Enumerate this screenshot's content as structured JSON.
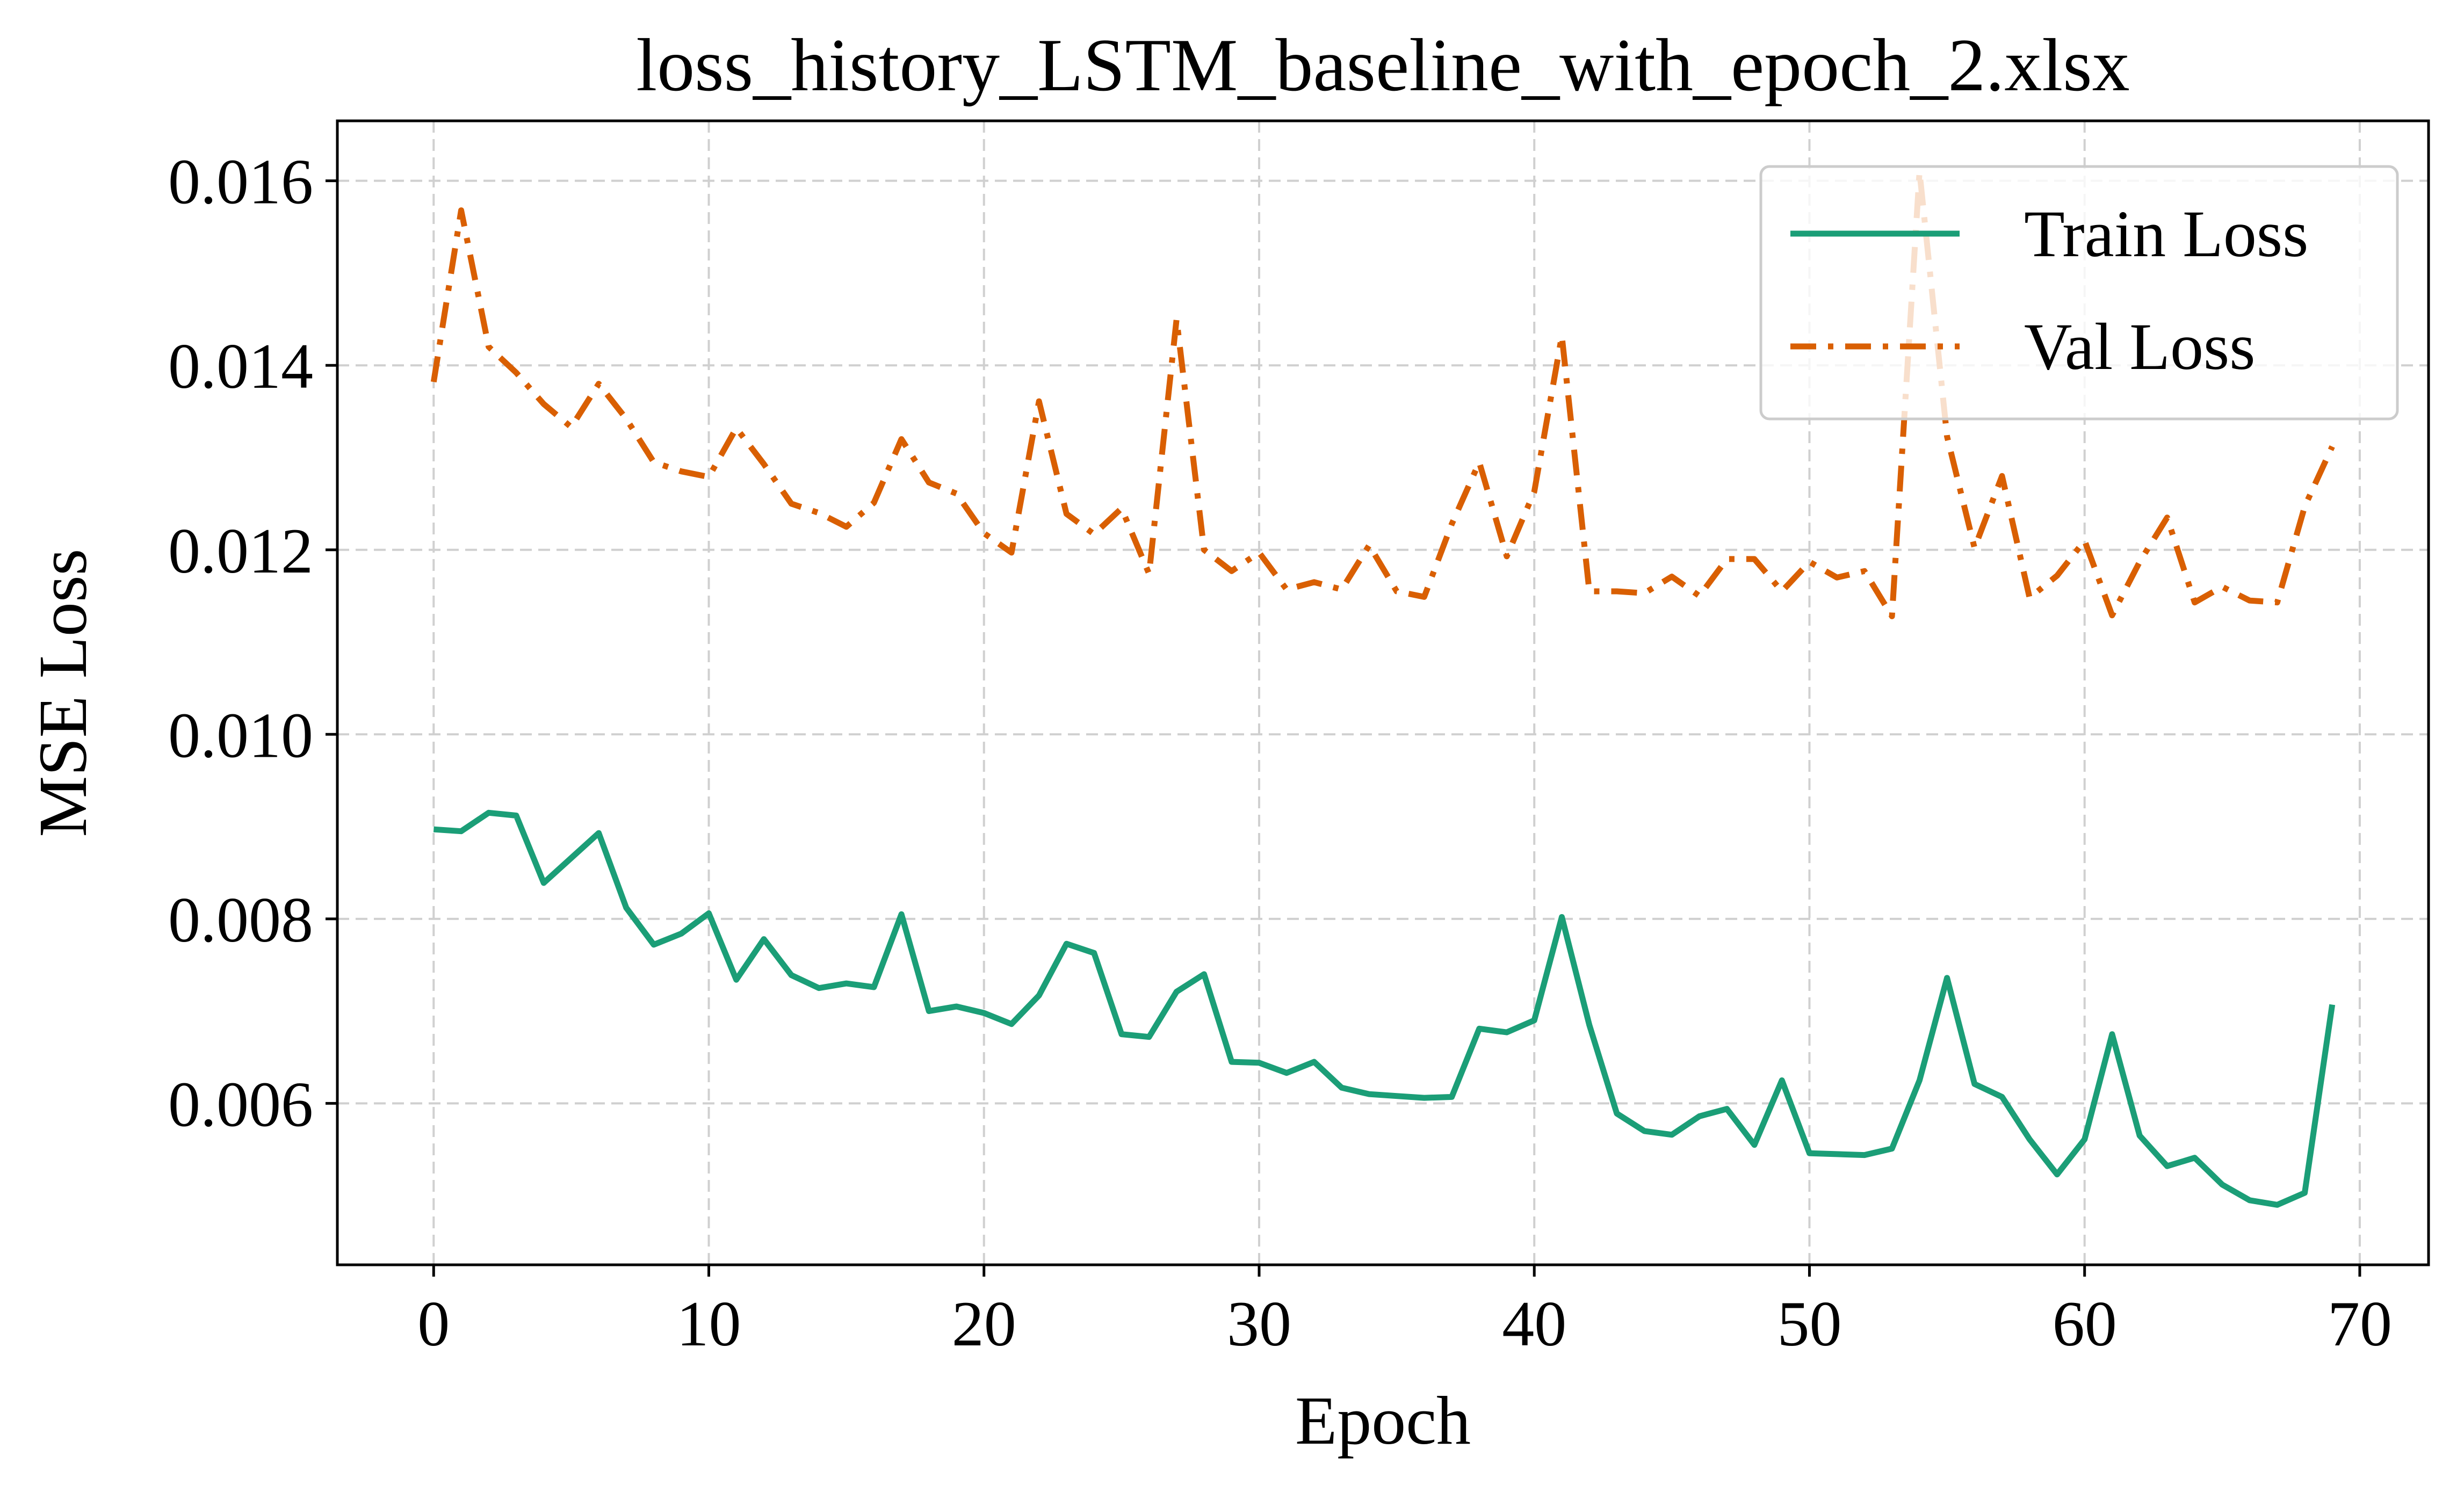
{
  "chart_data": {
    "type": "line",
    "title": "loss_history_LSTM_baseline_with_epoch_2.xlsx",
    "xlabel": "Epoch",
    "ylabel": "MSE Loss",
    "xlim": [
      -3.5,
      72.5
    ],
    "ylim": [
      0.00425,
      0.01665
    ],
    "x_ticks": [
      0,
      10,
      20,
      30,
      40,
      50,
      60,
      70
    ],
    "x_tick_labels": [
      "0",
      "10",
      "20",
      "30",
      "40",
      "50",
      "60",
      "70"
    ],
    "y_ticks": [
      0.006,
      0.008,
      0.01,
      0.012,
      0.014,
      0.016
    ],
    "y_tick_labels": [
      "0.006",
      "0.008",
      "0.010",
      "0.012",
      "0.014",
      "0.016"
    ],
    "grid": true,
    "legend_position": "top-right",
    "x": [
      0,
      1,
      2,
      3,
      4,
      5,
      6,
      7,
      8,
      9,
      10,
      11,
      12,
      13,
      14,
      15,
      16,
      17,
      18,
      19,
      20,
      21,
      22,
      23,
      24,
      25,
      26,
      27,
      28,
      29,
      30,
      31,
      32,
      33,
      34,
      35,
      36,
      37,
      38,
      39,
      40,
      41,
      42,
      43,
      44,
      45,
      46,
      47,
      48,
      49,
      50,
      51,
      52,
      53,
      54,
      55,
      56,
      57,
      58,
      59,
      60,
      61,
      62,
      63,
      64,
      65,
      66,
      67,
      68,
      69
    ],
    "series": [
      {
        "name": "Train Loss",
        "color": "#1b9e77",
        "line_style": "solid",
        "values": [
          0.00897,
          0.00895,
          0.00915,
          0.00912,
          0.00839,
          0.00866,
          0.00893,
          0.00812,
          0.00772,
          0.00784,
          0.00806,
          0.00734,
          0.00778,
          0.00739,
          0.00725,
          0.0073,
          0.00726,
          0.00805,
          0.007,
          0.00705,
          0.00698,
          0.00686,
          0.00717,
          0.00773,
          0.00763,
          0.00675,
          0.00672,
          0.00721,
          0.0074,
          0.00645,
          0.00644,
          0.00633,
          0.00645,
          0.00617,
          0.0061,
          0.00608,
          0.00606,
          0.00607,
          0.00681,
          0.00677,
          0.0069,
          0.00802,
          0.00685,
          0.00589,
          0.0057,
          0.00566,
          0.00586,
          0.00594,
          0.00555,
          0.00625,
          0.00546,
          0.00545,
          0.00544,
          0.00551,
          0.00625,
          0.00736,
          0.00621,
          0.00607,
          0.00561,
          0.00523,
          0.00561,
          0.00675,
          0.00565,
          0.00532,
          0.00541,
          0.00512,
          0.00495,
          0.0049,
          0.00503,
          0.00707
        ]
      },
      {
        "name": "Val Loss",
        "color": "#d95f02",
        "line_style": "dashdot",
        "values": [
          0.01382,
          0.01568,
          0.0142,
          0.01392,
          0.01358,
          0.01333,
          0.0138,
          0.01342,
          0.01295,
          0.01285,
          0.01279,
          0.01332,
          0.01293,
          0.0125,
          0.0124,
          0.01225,
          0.01251,
          0.0132,
          0.01273,
          0.01261,
          0.01218,
          0.01197,
          0.01361,
          0.01239,
          0.01217,
          0.01245,
          0.01174,
          0.0145,
          0.012,
          0.01177,
          0.01197,
          0.01157,
          0.01165,
          0.01157,
          0.01205,
          0.01155,
          0.01149,
          0.01228,
          0.01295,
          0.01193,
          0.01263,
          0.01432,
          0.01155,
          0.01155,
          0.01153,
          0.01171,
          0.0115,
          0.0119,
          0.0119,
          0.01155,
          0.01187,
          0.0117,
          0.01177,
          0.01128,
          0.0161,
          0.01323,
          0.01202,
          0.0128,
          0.01148,
          0.01172,
          0.0121,
          0.01129,
          0.01187,
          0.01235,
          0.01143,
          0.0116,
          0.01145,
          0.01143,
          0.01247,
          0.01312
        ]
      }
    ]
  }
}
